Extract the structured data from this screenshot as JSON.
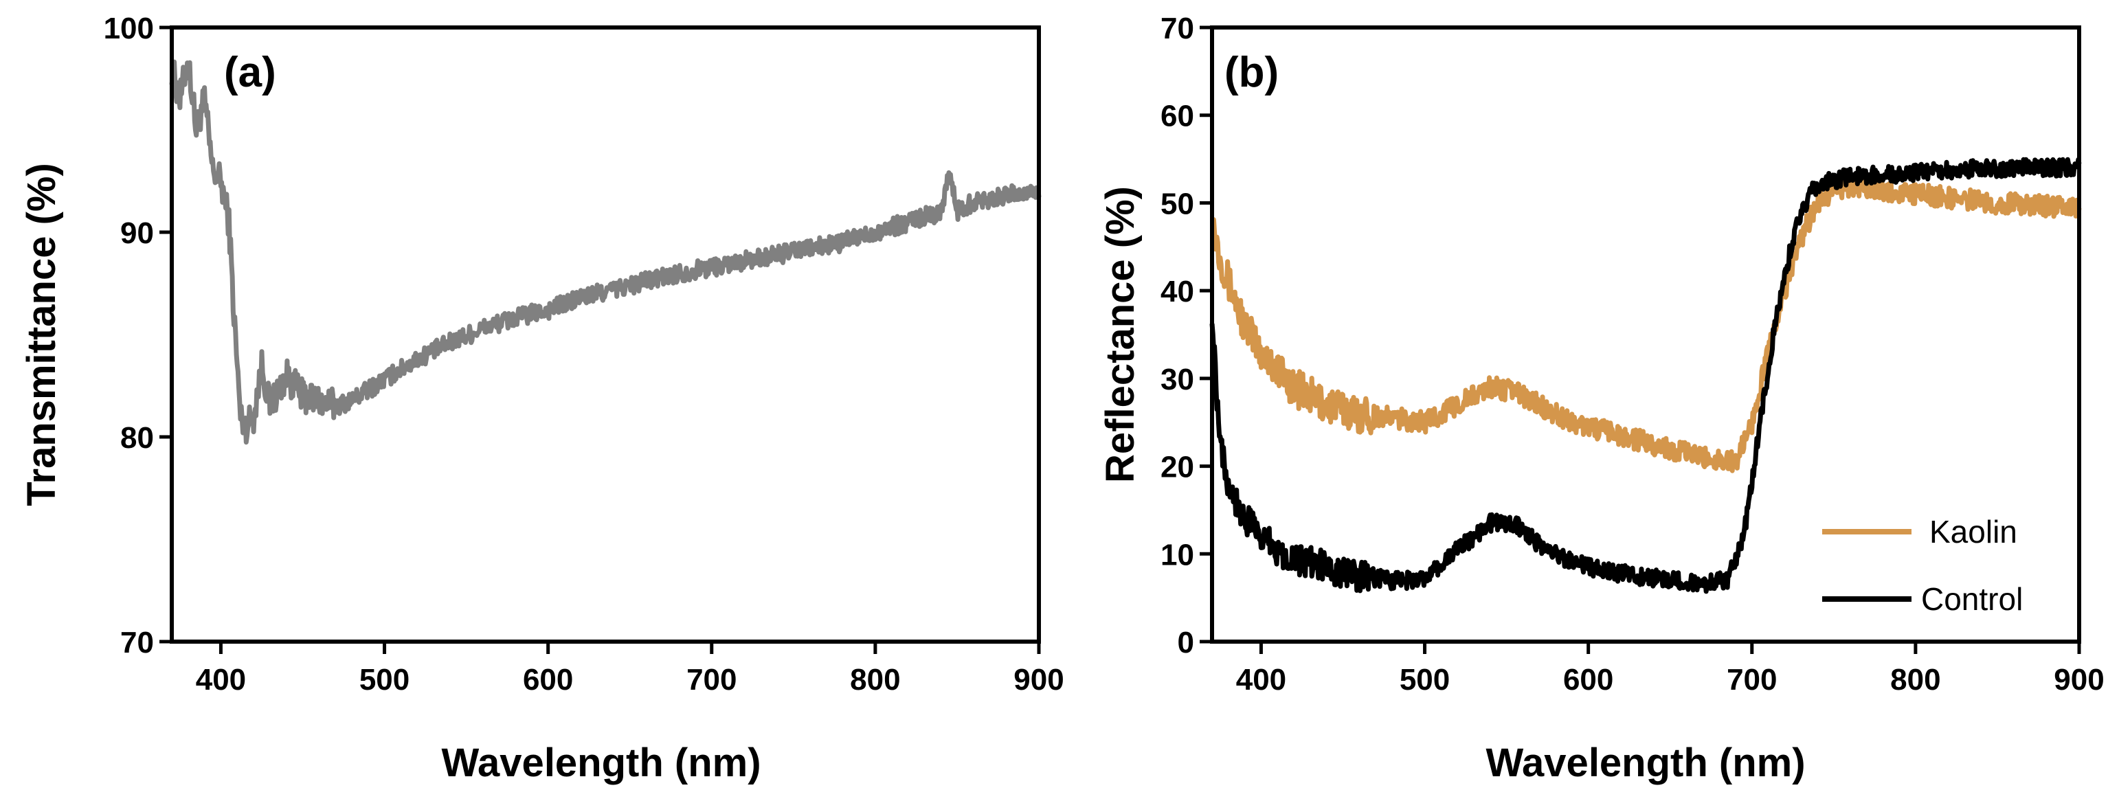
{
  "chart_data": [
    {
      "type": "line",
      "panel_label": "(a)",
      "xlabel": "Wavelength (nm)",
      "ylabel": "Transmittance (%)",
      "xlim": [
        370,
        900
      ],
      "ylim": [
        70,
        100
      ],
      "x_ticks": [
        400,
        500,
        600,
        700,
        800,
        900
      ],
      "y_ticks": [
        70,
        80,
        90,
        100
      ],
      "series": [
        {
          "name": "Transmittance",
          "color": "#808080",
          "noise": 0.45,
          "x": [
            370,
            375,
            380,
            385,
            390,
            395,
            400,
            405,
            408,
            412,
            415,
            420,
            425,
            430,
            440,
            450,
            460,
            470,
            480,
            500,
            520,
            540,
            560,
            580,
            600,
            620,
            640,
            660,
            680,
            700,
            720,
            740,
            760,
            780,
            800,
            820,
            840,
            845,
            850,
            860,
            880,
            900
          ],
          "y": [
            98.0,
            96.5,
            98.5,
            95.0,
            96.5,
            93.0,
            92.5,
            90.5,
            86.0,
            81.0,
            80.5,
            81.0,
            83.5,
            81.5,
            83.0,
            82.0,
            81.8,
            81.5,
            81.8,
            82.8,
            83.8,
            84.6,
            85.3,
            85.8,
            86.2,
            86.8,
            87.2,
            87.6,
            88.0,
            88.3,
            88.6,
            88.9,
            89.2,
            89.5,
            90.0,
            90.5,
            91.0,
            93.0,
            91.0,
            91.5,
            91.8,
            92.0
          ]
        }
      ]
    },
    {
      "type": "line",
      "panel_label": "(b)",
      "xlabel": "Wavelength (nm)",
      "ylabel": "Reflectance (%)",
      "xlim": [
        370,
        900
      ],
      "ylim": [
        0,
        70
      ],
      "x_ticks": [
        400,
        500,
        600,
        700,
        800,
        900
      ],
      "y_ticks": [
        0,
        10,
        20,
        30,
        40,
        50,
        60,
        70
      ],
      "legend_position": "bottom-right",
      "series": [
        {
          "name": "Kaolin",
          "color": "#D4964B",
          "noise": 1.2,
          "x": [
            370,
            375,
            380,
            390,
            400,
            410,
            420,
            440,
            460,
            480,
            500,
            520,
            540,
            555,
            570,
            590,
            610,
            630,
            650,
            670,
            690,
            700,
            710,
            720,
            730,
            740,
            750,
            760,
            800,
            850,
            900
          ],
          "y": [
            48.0,
            44.0,
            41.0,
            36.0,
            33.0,
            31.0,
            29.0,
            27.0,
            26.0,
            25.5,
            25.0,
            27.0,
            29.0,
            28.5,
            27.0,
            25.0,
            24.0,
            23.0,
            22.0,
            21.0,
            20.5,
            25.0,
            33.0,
            40.0,
            46.0,
            50.0,
            51.5,
            52.0,
            51.0,
            50.0,
            49.5
          ]
        },
        {
          "name": "Control",
          "color": "#000000",
          "noise": 1.0,
          "x": [
            370,
            373,
            376,
            380,
            390,
            400,
            410,
            420,
            440,
            460,
            480,
            500,
            520,
            540,
            555,
            570,
            590,
            610,
            630,
            650,
            670,
            685,
            695,
            705,
            715,
            725,
            735,
            745,
            760,
            800,
            850,
            900
          ],
          "y": [
            38.0,
            28.0,
            22.0,
            18.0,
            14.0,
            12.0,
            10.5,
            9.5,
            8.5,
            7.5,
            7.0,
            7.0,
            10.5,
            13.5,
            13.5,
            11.0,
            9.0,
            8.0,
            7.5,
            7.0,
            6.5,
            7.0,
            12.0,
            25.0,
            37.0,
            46.0,
            51.0,
            52.5,
            53.0,
            53.5,
            54.0,
            54.0
          ]
        }
      ]
    }
  ]
}
